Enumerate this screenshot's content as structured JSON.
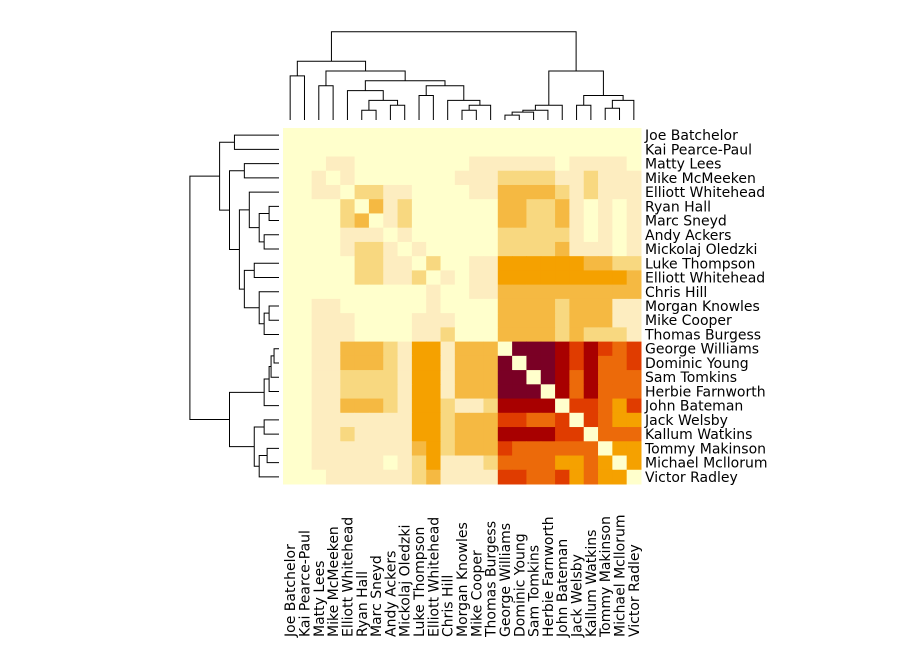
{
  "chart_data": {
    "type": "heatmap",
    "row_labels": [
      "Joe Batchelor",
      "Kai Pearce-Paul",
      "Matty Lees",
      "Mike McMeeken",
      "Elliott Whitehead",
      "Ryan Hall",
      "Marc Sneyd",
      "Andy Ackers",
      "Mickolaj Oledzki",
      "Luke Thompson",
      "Elliott Whitehead",
      "Chris Hill",
      "Morgan Knowles",
      "Mike Cooper",
      "Thomas Burgess",
      "George Williams",
      "Dominic Young",
      "Sam Tomkins",
      "Herbie Farnworth",
      "John Bateman",
      "Jack Welsby",
      "Kallum Watkins",
      "Tommy Makinson",
      "Michael Mcllorum",
      "Victor Radley"
    ],
    "col_labels": [
      "Joe Batchelor",
      "Kai Pearce-Paul",
      "Matty Lees",
      "Mike McMeeken",
      "Elliott Whitehead",
      "Ryan Hall",
      "Marc Sneyd",
      "Andy Ackers",
      "Mickolaj Oledzki",
      "Luke Thompson",
      "Elliott Whitehead",
      "Chris Hill",
      "Morgan Knowles",
      "Mike Cooper",
      "Thomas Burgess",
      "George Williams",
      "Dominic Young",
      "Sam Tomkins",
      "Herbie Farnworth",
      "John Bateman",
      "Jack Welsby",
      "Kallum Watkins",
      "Tommy Makinson",
      "Michael Mcllorum",
      "Victor Radley"
    ],
    "colors": [
      "#7a0025",
      "#a80000",
      "#e03c00",
      "#ec6a0a",
      "#f5a100",
      "#f5b942",
      "#f8d880",
      "#fdedc0",
      "#ffffcc"
    ],
    "values": [
      [
        9,
        9,
        9,
        9,
        9,
        9,
        9,
        9,
        9,
        9,
        9,
        9,
        9,
        9,
        9,
        9,
        9,
        9,
        9,
        9,
        9,
        9,
        9,
        9,
        9
      ],
      [
        9,
        9,
        9,
        9,
        9,
        9,
        9,
        9,
        9,
        9,
        9,
        9,
        9,
        9,
        9,
        9,
        9,
        9,
        9,
        9,
        9,
        9,
        9,
        9,
        9
      ],
      [
        9,
        9,
        9,
        8,
        8,
        9,
        9,
        9,
        9,
        9,
        9,
        9,
        9,
        8,
        8,
        8,
        8,
        8,
        8,
        9,
        8,
        8,
        8,
        8,
        9
      ],
      [
        9,
        9,
        8,
        9,
        8,
        9,
        9,
        9,
        9,
        9,
        9,
        9,
        8,
        8,
        8,
        7,
        7,
        7,
        7,
        8,
        8,
        7,
        8,
        8,
        8
      ],
      [
        9,
        9,
        8,
        8,
        9,
        7,
        7,
        8,
        8,
        9,
        9,
        9,
        9,
        8,
        8,
        6,
        6,
        6,
        6,
        7,
        8,
        7,
        8,
        8,
        8
      ],
      [
        9,
        9,
        9,
        9,
        7,
        9,
        6,
        8,
        7,
        9,
        9,
        9,
        9,
        9,
        9,
        6,
        6,
        7,
        7,
        6,
        8,
        9,
        8,
        9,
        8
      ],
      [
        9,
        9,
        9,
        9,
        7,
        6,
        9,
        8,
        7,
        9,
        9,
        9,
        9,
        9,
        9,
        6,
        6,
        7,
        7,
        6,
        8,
        9,
        8,
        9,
        8
      ],
      [
        9,
        9,
        9,
        9,
        8,
        8,
        8,
        9,
        8,
        9,
        9,
        9,
        9,
        9,
        9,
        7,
        7,
        7,
        7,
        7,
        8,
        9,
        8,
        9,
        8
      ],
      [
        9,
        9,
        9,
        9,
        8,
        7,
        7,
        8,
        9,
        8,
        9,
        9,
        9,
        9,
        9,
        7,
        7,
        7,
        7,
        6,
        8,
        8,
        8,
        9,
        8
      ],
      [
        9,
        9,
        9,
        9,
        9,
        7,
        7,
        8,
        8,
        9,
        7,
        9,
        9,
        8,
        8,
        5,
        5,
        5,
        5,
        5,
        5,
        6,
        6,
        7,
        7
      ],
      [
        9,
        9,
        9,
        9,
        9,
        7,
        7,
        8,
        8,
        7,
        9,
        8,
        9,
        8,
        8,
        5,
        5,
        5,
        5,
        5,
        5,
        5,
        5,
        5,
        6
      ],
      [
        9,
        9,
        9,
        9,
        9,
        9,
        9,
        9,
        9,
        9,
        8,
        9,
        9,
        8,
        8,
        6,
        6,
        6,
        6,
        6,
        6,
        6,
        6,
        6,
        6
      ],
      [
        9,
        9,
        8,
        8,
        9,
        9,
        9,
        9,
        9,
        9,
        8,
        9,
        9,
        9,
        9,
        6,
        6,
        6,
        6,
        7,
        6,
        6,
        6,
        8,
        8
      ],
      [
        9,
        9,
        8,
        8,
        8,
        9,
        9,
        9,
        9,
        8,
        8,
        8,
        9,
        9,
        9,
        6,
        6,
        6,
        6,
        7,
        6,
        6,
        6,
        8,
        8
      ],
      [
        9,
        9,
        8,
        8,
        8,
        9,
        9,
        9,
        9,
        8,
        8,
        7,
        9,
        9,
        9,
        6,
        6,
        6,
        6,
        7,
        6,
        7,
        7,
        7,
        8
      ],
      [
        9,
        9,
        8,
        8,
        6,
        6,
        6,
        7,
        8,
        5,
        5,
        8,
        6,
        6,
        6,
        9,
        1,
        1,
        1,
        2,
        3,
        2,
        3,
        4,
        3
      ],
      [
        9,
        9,
        8,
        8,
        6,
        6,
        6,
        7,
        8,
        5,
        5,
        8,
        6,
        6,
        6,
        1,
        9,
        1,
        1,
        2,
        3,
        2,
        4,
        4,
        3
      ],
      [
        9,
        9,
        8,
        8,
        7,
        7,
        7,
        7,
        8,
        5,
        5,
        8,
        6,
        6,
        6,
        1,
        1,
        9,
        1,
        2,
        4,
        2,
        4,
        4,
        4
      ],
      [
        9,
        9,
        8,
        8,
        7,
        7,
        7,
        7,
        8,
        5,
        5,
        8,
        6,
        6,
        6,
        1,
        1,
        1,
        9,
        2,
        4,
        2,
        4,
        4,
        4
      ],
      [
        9,
        9,
        8,
        8,
        6,
        6,
        6,
        7,
        8,
        5,
        5,
        7,
        8,
        8,
        7,
        2,
        2,
        2,
        2,
        9,
        3,
        3,
        4,
        5,
        3
      ],
      [
        9,
        9,
        8,
        8,
        8,
        8,
        8,
        8,
        8,
        5,
        5,
        7,
        6,
        6,
        6,
        3,
        3,
        4,
        4,
        3,
        9,
        3,
        4,
        5,
        5
      ],
      [
        9,
        9,
        8,
        8,
        7,
        8,
        8,
        8,
        8,
        5,
        5,
        7,
        6,
        6,
        6,
        2,
        2,
        2,
        2,
        3,
        3,
        9,
        4,
        4,
        4
      ],
      [
        9,
        9,
        8,
        8,
        8,
        8,
        8,
        8,
        8,
        6,
        5,
        7,
        6,
        6,
        6,
        3,
        4,
        4,
        4,
        4,
        4,
        4,
        9,
        5,
        5
      ],
      [
        9,
        9,
        8,
        8,
        8,
        8,
        8,
        9,
        8,
        7,
        5,
        8,
        8,
        8,
        7,
        4,
        4,
        4,
        4,
        5,
        5,
        4,
        5,
        9,
        5
      ],
      [
        9,
        9,
        9,
        8,
        8,
        8,
        8,
        8,
        8,
        7,
        6,
        8,
        8,
        8,
        8,
        3,
        3,
        4,
        4,
        3,
        5,
        4,
        5,
        5,
        9
      ]
    ]
  }
}
